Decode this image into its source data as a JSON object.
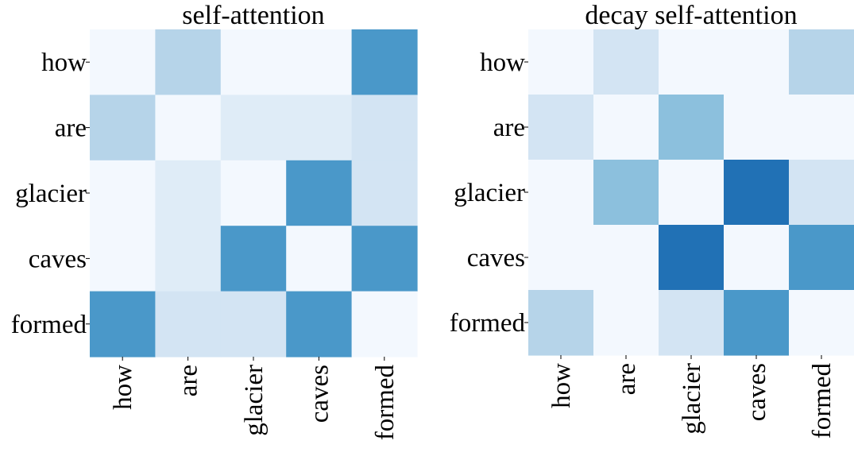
{
  "chart_data": [
    {
      "type": "heatmap",
      "title": "self-attention",
      "x_categories": [
        "how",
        "are",
        "glacier",
        "caves",
        "formed"
      ],
      "y_categories": [
        "how",
        "are",
        "glacier",
        "caves",
        "formed"
      ],
      "values": [
        [
          0.02,
          0.3,
          0.02,
          0.02,
          0.6
        ],
        [
          0.3,
          0.02,
          0.12,
          0.12,
          0.18
        ],
        [
          0.02,
          0.12,
          0.02,
          0.6,
          0.18
        ],
        [
          0.02,
          0.12,
          0.6,
          0.02,
          0.6
        ],
        [
          0.6,
          0.18,
          0.18,
          0.6,
          0.02
        ]
      ],
      "vmin": 0,
      "vmax": 1,
      "colormap": "Blues",
      "grid": false,
      "legend": "none"
    },
    {
      "type": "heatmap",
      "title": "decay self-attention",
      "x_categories": [
        "how",
        "are",
        "glacier",
        "caves",
        "formed"
      ],
      "y_categories": [
        "how",
        "are",
        "glacier",
        "caves",
        "formed"
      ],
      "values": [
        [
          0.02,
          0.18,
          0.02,
          0.02,
          0.3
        ],
        [
          0.18,
          0.02,
          0.42,
          0.02,
          0.02
        ],
        [
          0.02,
          0.42,
          0.02,
          0.75,
          0.18
        ],
        [
          0.02,
          0.02,
          0.75,
          0.02,
          0.6
        ],
        [
          0.3,
          0.02,
          0.18,
          0.6,
          0.02
        ]
      ],
      "vmin": 0,
      "vmax": 1,
      "colormap": "Blues",
      "grid": false,
      "legend": "none"
    }
  ]
}
